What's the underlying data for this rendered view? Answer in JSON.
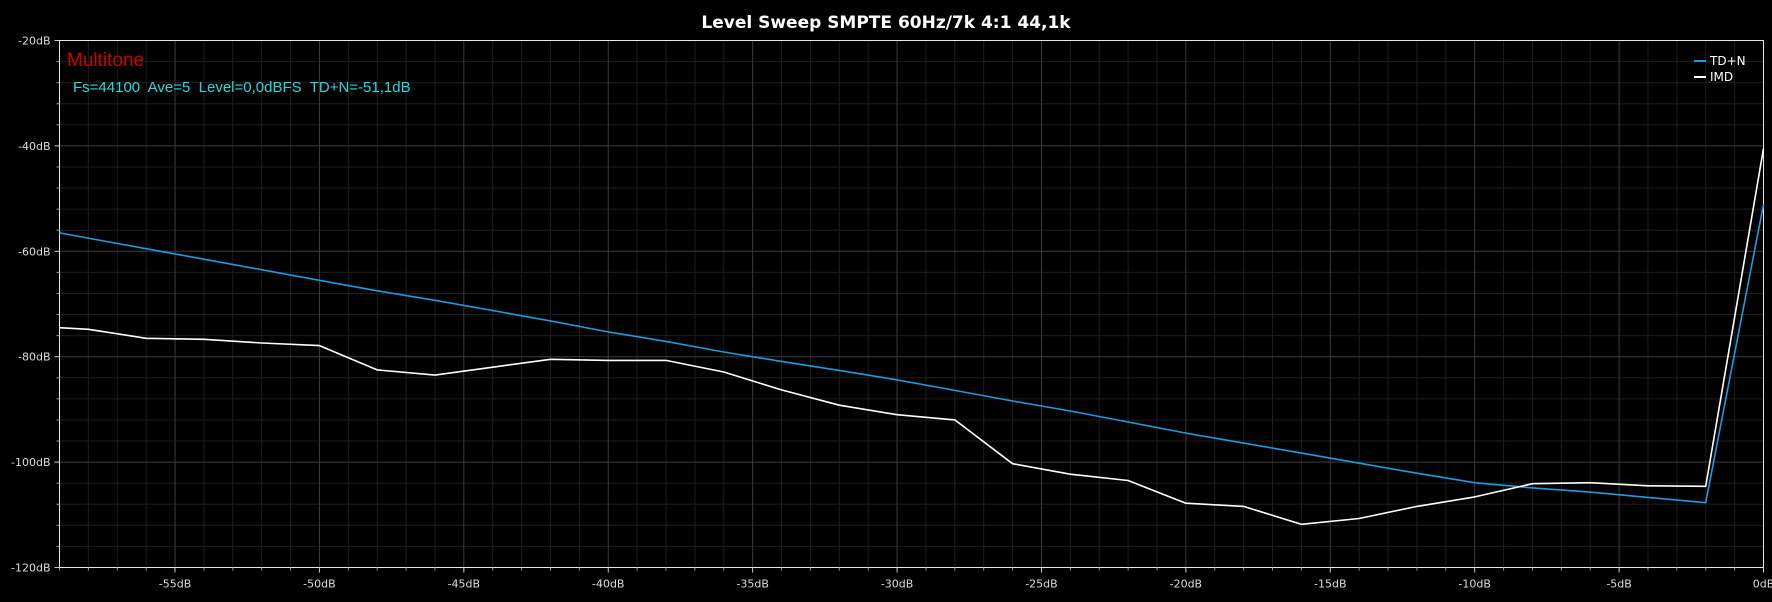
{
  "chart_data": {
    "type": "line",
    "title": "Level Sweep SMPTE 60Hz/7k 4:1 44,1k",
    "xlim": [
      -59,
      0
    ],
    "ylim": [
      -120,
      -20
    ],
    "x_ticks": [
      -55,
      -50,
      -45,
      -40,
      -35,
      -30,
      -25,
      -20,
      -15,
      -10,
      -5,
      0
    ],
    "x_tick_labels": [
      "-55dB",
      "-50dB",
      "-45dB",
      "-40dB",
      "-35dB",
      "-30dB",
      "-25dB",
      "-20dB",
      "-15dB",
      "-10dB",
      "-5dB",
      "0dB"
    ],
    "y_ticks": [
      -20,
      -40,
      -60,
      -80,
      -100,
      -120
    ],
    "y_tick_labels": [
      "-20dB",
      "-40dB",
      "-60dB",
      "-80dB",
      "-100dB",
      "-120dB"
    ],
    "grid": true,
    "legend_position": "top-right",
    "series": [
      {
        "name": "TD+N",
        "color": "#1c9be0",
        "x": [
          -59,
          -56,
          -54,
          -50,
          -48,
          -46,
          -42,
          -40,
          -38,
          -36,
          -34,
          -32,
          -30,
          -28,
          -26,
          -24,
          -22,
          -20,
          -18,
          -16,
          -14,
          -12,
          -10,
          -8,
          -6,
          -4,
          -2,
          0
        ],
        "y": [
          -56.5,
          -59.5,
          -61.5,
          -65.5,
          -67.5,
          -69.3,
          -73.2,
          -75.3,
          -77.1,
          -79.1,
          -80.9,
          -82.6,
          -84.4,
          -86.4,
          -88.4,
          -90.3,
          -92.4,
          -94.5,
          -96.4,
          -98.3,
          -100.2,
          -102.1,
          -103.9,
          -104.9,
          -105.7,
          -106.7,
          -107.7,
          -51.1
        ]
      },
      {
        "name": "IMD",
        "color": "#ffffff",
        "x": [
          -59,
          -58,
          -56,
          -54,
          -52,
          -50,
          -48,
          -46,
          -44,
          -42,
          -40,
          -38,
          -36,
          -34,
          -32,
          -30,
          -28,
          -26,
          -24,
          -22,
          -20,
          -18,
          -16,
          -14,
          -12,
          -10,
          -8,
          -6,
          -4,
          -2,
          0
        ],
        "y": [
          -74.5,
          -74.8,
          -76.5,
          -76.7,
          -77.4,
          -77.9,
          -82.5,
          -83.5,
          -82.0,
          -80.5,
          -80.7,
          -80.7,
          -82.9,
          -86.3,
          -89.2,
          -91.0,
          -92.0,
          -100.3,
          -102.3,
          -103.5,
          -107.8,
          -108.4,
          -111.8,
          -110.7,
          -108.4,
          -106.6,
          -104.1,
          -103.9,
          -104.5,
          -104.6,
          -40.5
        ]
      }
    ]
  },
  "annotations": {
    "brand": "Multitone",
    "brand_color": "#cc0000",
    "info": "Fs=44100  Ave=5  Level=0,0dBFS  TD+N=-51,1dB",
    "info_color": "#22dde0"
  }
}
